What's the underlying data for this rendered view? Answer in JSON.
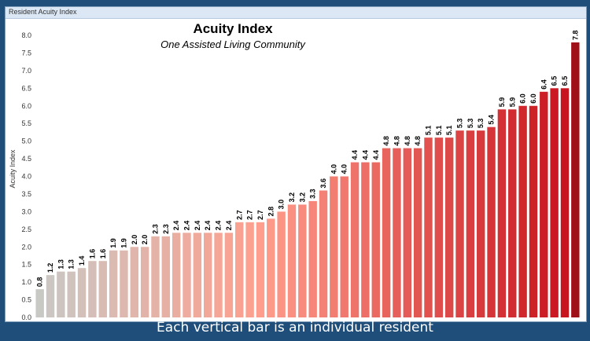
{
  "window": {
    "title": "Resident Acuity Index"
  },
  "footer": {
    "caption": "Each vertical bar is an individual resident"
  },
  "chart_data": {
    "type": "bar",
    "title": "Acuity Index",
    "subtitle": "One Assisted Living Community",
    "xlabel": "",
    "ylabel": "Acuity Index",
    "ylim": [
      0,
      8
    ],
    "yticks": [
      0.0,
      0.5,
      1.0,
      1.5,
      2.0,
      2.5,
      3.0,
      3.5,
      4.0,
      4.5,
      5.0,
      5.5,
      6.0,
      6.5,
      7.0,
      7.5,
      8.0
    ],
    "grid": false,
    "values": [
      0.8,
      1.2,
      1.3,
      1.3,
      1.4,
      1.6,
      1.6,
      1.9,
      1.9,
      2.0,
      2.0,
      2.3,
      2.3,
      2.4,
      2.4,
      2.4,
      2.4,
      2.4,
      2.4,
      2.7,
      2.7,
      2.7,
      2.8,
      3.0,
      3.2,
      3.2,
      3.3,
      3.6,
      4.0,
      4.0,
      4.4,
      4.4,
      4.4,
      4.8,
      4.8,
      4.8,
      4.8,
      5.1,
      5.1,
      5.1,
      5.3,
      5.3,
      5.3,
      5.4,
      5.9,
      5.9,
      6.0,
      6.0,
      6.4,
      6.5,
      6.5,
      7.8
    ],
    "colors": {
      "low": "#c8c8c4",
      "mid": "#ff9e8c",
      "high": "#c8141e",
      "top": "#a01018"
    }
  }
}
